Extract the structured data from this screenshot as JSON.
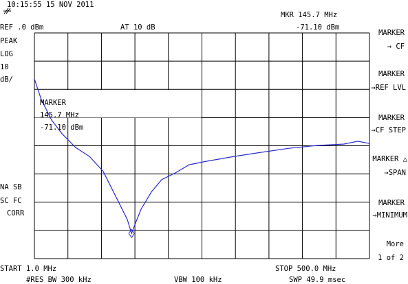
{
  "header": {
    "timestamp": "10:15:55  15 NOV 2011",
    "ref": "REF .0 dBm",
    "atten": "AT 10 dB",
    "marker_freq": "MKR 145.7 MHz",
    "marker_level": "-71.10 dBm"
  },
  "left_labels": [
    "PEAK",
    "LOG",
    "10",
    "dB/"
  ],
  "left_status": [
    "NA SB",
    "SC FC",
    "CORR"
  ],
  "chart_data": {
    "type": "line",
    "xlim": [
      1.0,
      500.0
    ],
    "ylim": [
      -80,
      0
    ],
    "x": [
      1.0,
      11.2,
      26.6,
      42.0,
      62.5,
      83.0,
      103.5,
      124.0,
      139.3,
      145.7,
      149.6,
      159.8,
      175.2,
      190.6,
      211.0,
      231.5,
      257.2,
      298.1,
      339.1,
      380.1,
      421.1,
      462.1,
      482.6,
      500.0
    ],
    "values": [
      -16.3,
      -23.6,
      -30.9,
      -35.7,
      -40.6,
      -43.8,
      -49.1,
      -58.8,
      -66.1,
      -71.1,
      -68.6,
      -62.5,
      -56.4,
      -52.0,
      -49.6,
      -46.7,
      -45.5,
      -43.8,
      -42.3,
      -40.9,
      -39.9,
      -39.4,
      -38.4,
      -39.2
    ],
    "color": "#2a2ad0",
    "marker": {
      "x": 145.7,
      "y": -71.1,
      "labels": [
        "MARKER",
        "145.7 MHz",
        "-71.10 dBm"
      ]
    }
  },
  "footer": {
    "start": "START 1.0 MHz",
    "stop": "STOP 500.0 MHz",
    "rbw": "#RES BW 300 kHz",
    "vbw": "VBW 100 kHz",
    "sweep": "SWP 49.9 msec"
  },
  "softkeys": [
    [
      "MARKER",
      "→ CF"
    ],
    [
      "MARKER",
      "→REF LVL"
    ],
    [
      "MARKER",
      "→CF STEP"
    ],
    [
      "MARKER △",
      "→SPAN"
    ],
    [
      "MARKER",
      "→MINIMUM"
    ]
  ],
  "more": [
    "More",
    "1 of 2"
  ]
}
